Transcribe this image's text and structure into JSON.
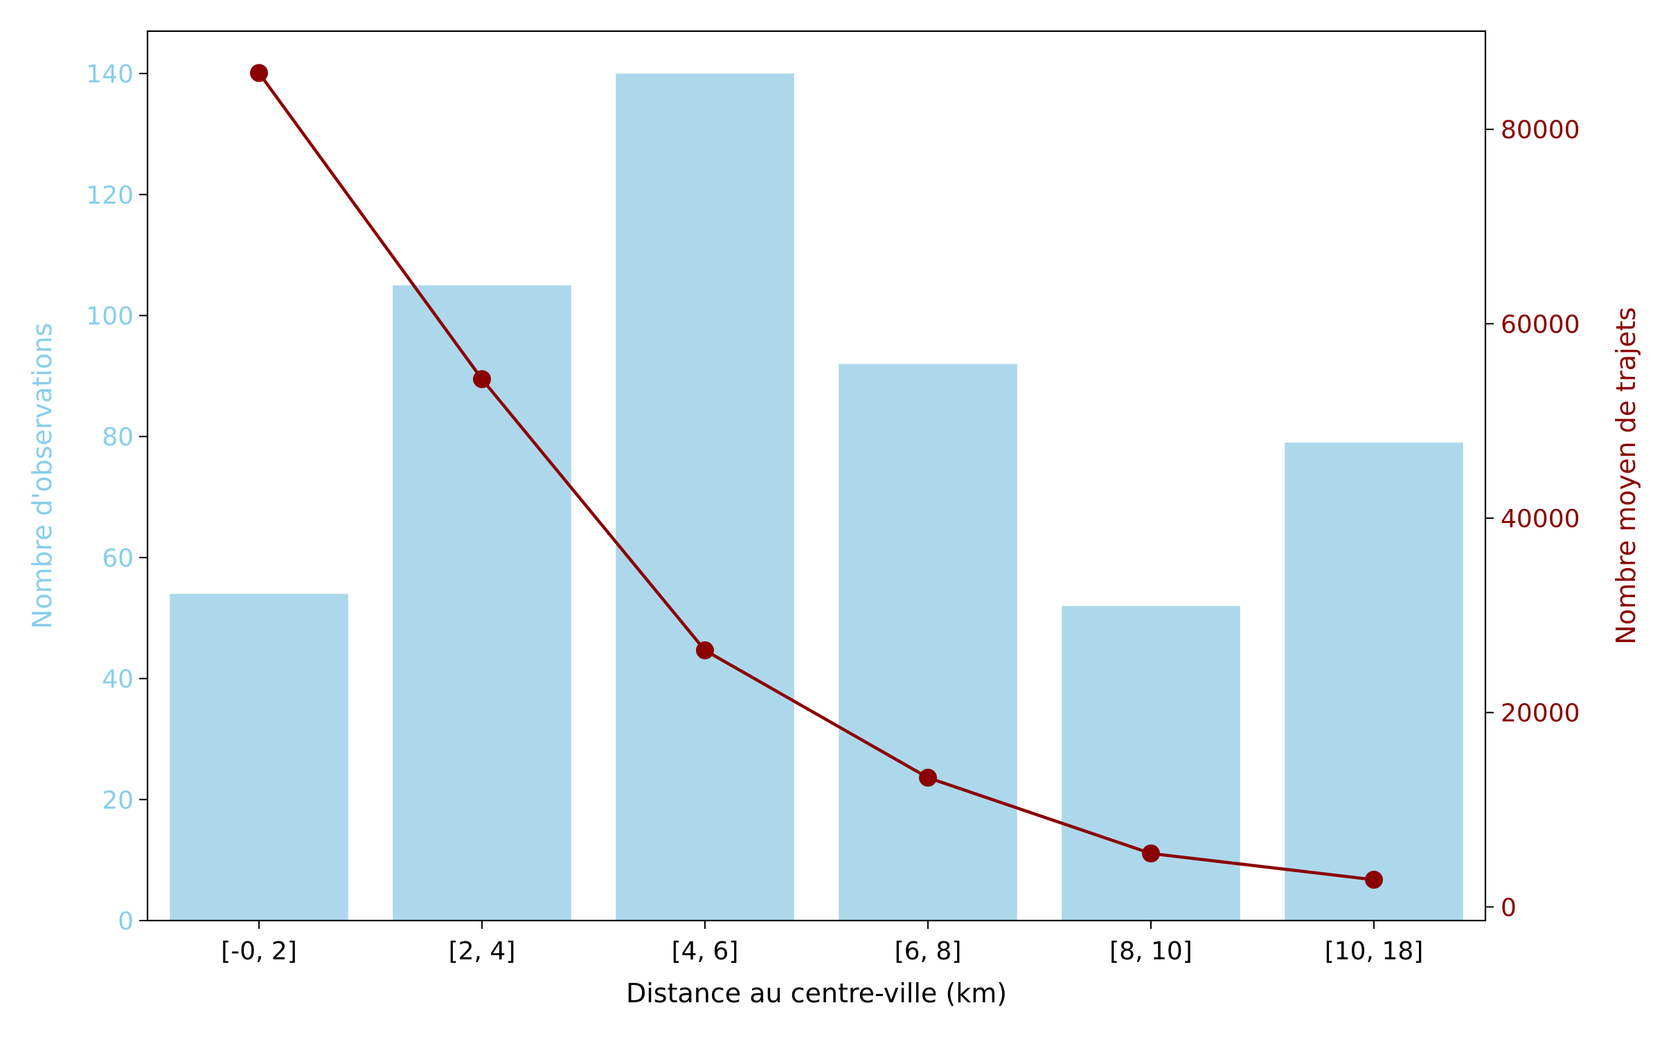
{
  "chart_data": {
    "type": "bar",
    "categories": [
      "[-0, 2]",
      "[2, 4]",
      "[4, 6]",
      "[6, 8]",
      "[8, 10]",
      "[10, 18]"
    ],
    "xlabel": "Distance au centre-ville (km)",
    "series": [
      {
        "type": "bar",
        "axis": "left",
        "color": "#add8ec",
        "values": [
          54,
          105,
          140,
          92,
          52,
          79
        ]
      },
      {
        "type": "line",
        "axis": "right",
        "color": "#8b0000",
        "markers": true,
        "values": [
          85800,
          54300,
          26400,
          13300,
          5500,
          2800
        ]
      }
    ],
    "left_axis": {
      "label": "Nombre d'observations",
      "color": "#87ceeb",
      "ylim": [
        0,
        147
      ],
      "ticks": [
        0,
        20,
        40,
        60,
        80,
        100,
        120,
        140
      ]
    },
    "right_axis": {
      "label": "Nombre moyen de trajets",
      "color": "#8b0000",
      "ylim": [
        -1400,
        90100
      ],
      "ticks": [
        0,
        20000,
        40000,
        60000,
        80000
      ]
    },
    "grid": false
  }
}
